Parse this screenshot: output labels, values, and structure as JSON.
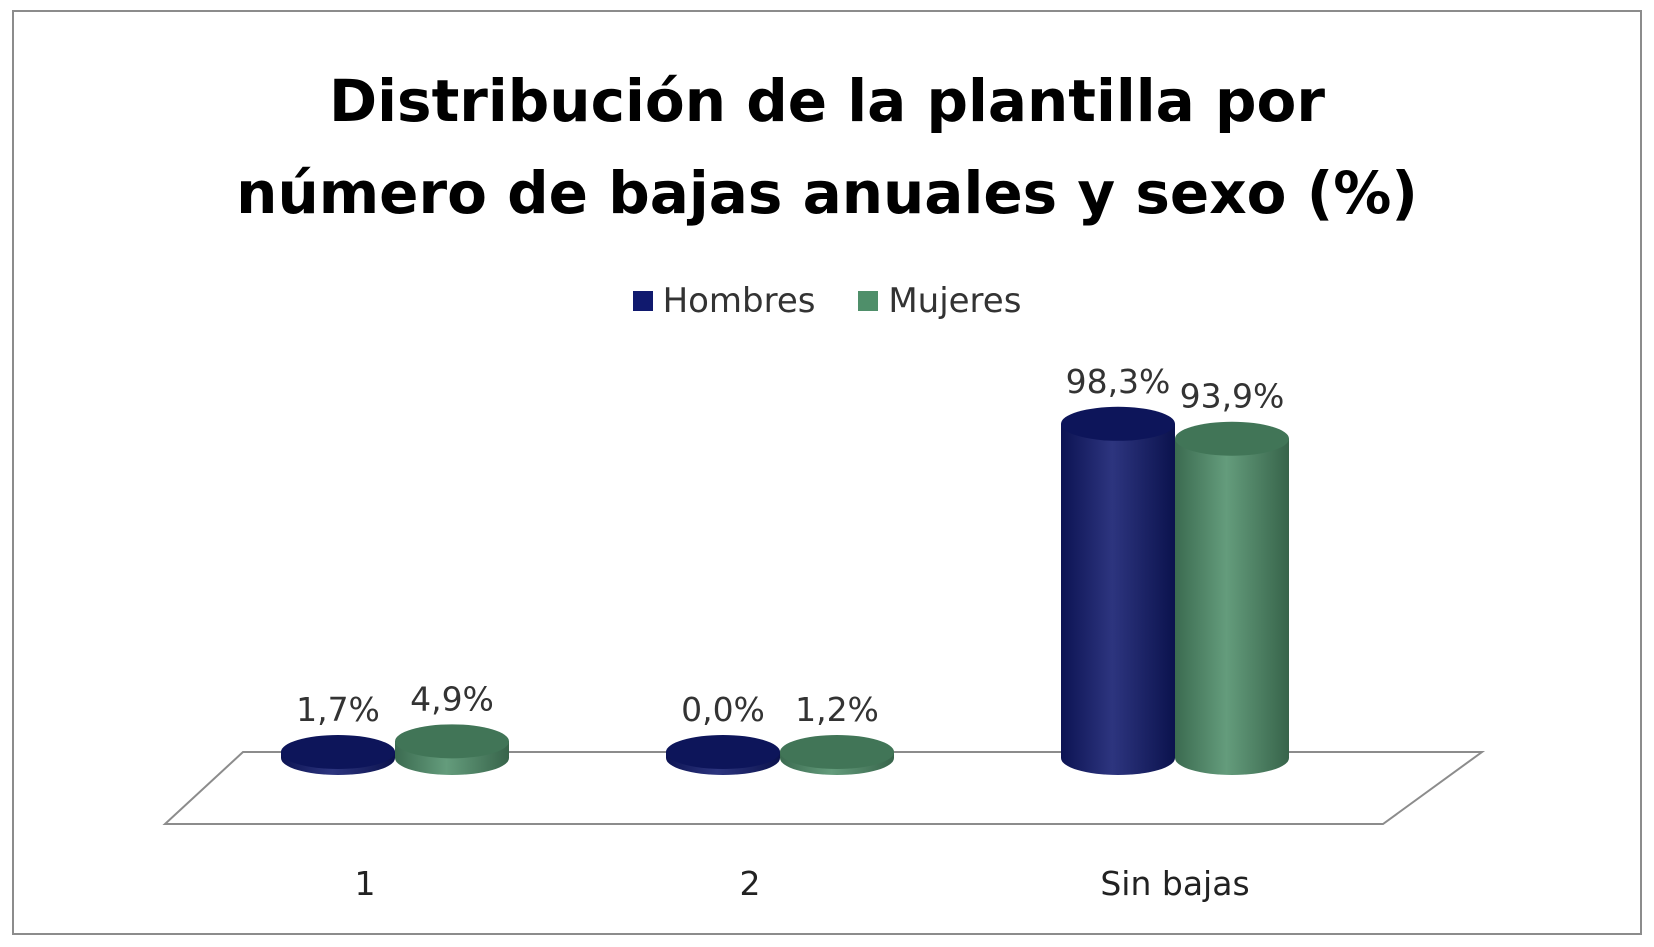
{
  "chart_data": {
    "type": "bar",
    "title_lines": [
      "Distribución de la plantilla por",
      "número de bajas anuales y sexo (%)"
    ],
    "categories": [
      "1",
      "2",
      "Sin bajas"
    ],
    "series": [
      {
        "name": "Hombres",
        "values": [
          1.7,
          0.0,
          98.3
        ],
        "labels": [
          "1,7%",
          "0,0%",
          "98,3%"
        ],
        "color": "#10196e"
      },
      {
        "name": "Mujeres",
        "values": [
          4.9,
          1.2,
          93.9
        ],
        "labels": [
          "4,9%",
          "1,2%",
          "93,9%"
        ],
        "color": "#4f8f6a"
      }
    ],
    "ylim": [
      0,
      100
    ],
    "grid": false,
    "legend_position": "top-center",
    "style": "3d-cylinder"
  }
}
